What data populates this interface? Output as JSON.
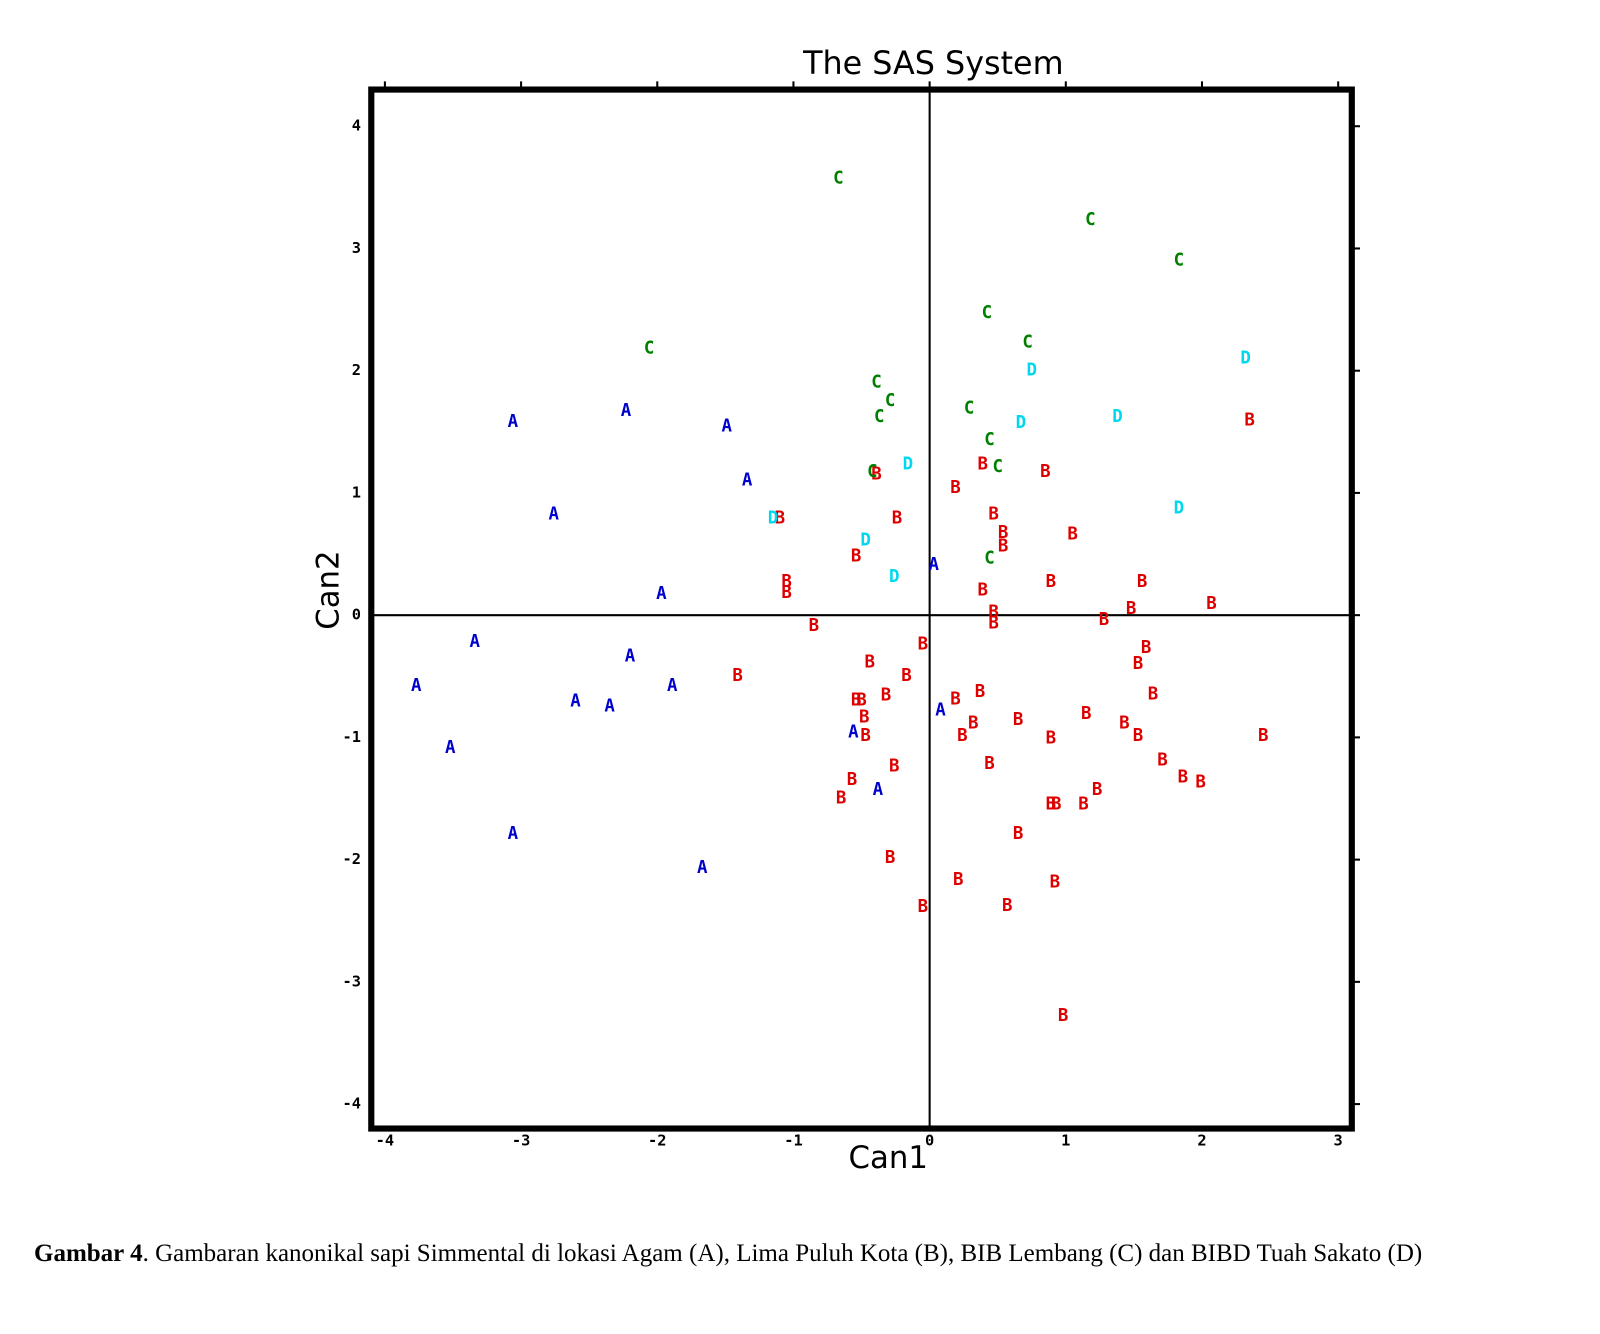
{
  "chart_data": {
    "type": "scatter",
    "title": "The SAS System",
    "x_label": "Can1",
    "y_label": "Can2",
    "xlim": [
      -4.1,
      3.1
    ],
    "ylim": [
      -4.2,
      4.3
    ],
    "xticks": [
      -4,
      -3,
      -2,
      -1,
      0,
      1,
      2,
      3
    ],
    "yticks": [
      -4,
      -3,
      -2,
      -1,
      0,
      1,
      2,
      3,
      4
    ],
    "reference_lines": true,
    "series": [
      {
        "name": "A",
        "color": "#0000cc",
        "x": [
          -3.06,
          -2.23,
          -1.49,
          -1.34,
          -2.76,
          -1.97,
          0.03,
          -3.34,
          -2.2,
          -3.77,
          -1.89,
          -2.6,
          -2.35,
          0.08,
          -0.56,
          -3.52,
          -0.38,
          -3.06,
          -1.67
        ],
        "values": [
          1.59,
          1.68,
          1.55,
          1.11,
          0.83,
          0.18,
          0.42,
          -0.21,
          -0.33,
          -0.57,
          -0.57,
          -0.7,
          -0.74,
          -0.77,
          -0.95,
          -1.08,
          -1.42,
          -1.78,
          -2.06
        ]
      },
      {
        "name": "B",
        "color": "#dd0000",
        "x": [
          2.35,
          0.39,
          0.85,
          -0.39,
          0.19,
          0.47,
          -1.1,
          -0.24,
          1.05,
          0.54,
          0.54,
          -0.54,
          -1.05,
          -1.05,
          0.39,
          0.89,
          1.56,
          2.07,
          0.47,
          1.48,
          1.28,
          0.47,
          -0.85,
          -0.05,
          1.59,
          1.53,
          -0.44,
          -0.17,
          -1.41,
          0.37,
          0.19,
          -0.32,
          1.64,
          -0.54,
          -0.5,
          -0.48,
          1.15,
          0.65,
          0.32,
          1.43,
          0.24,
          -0.47,
          0.89,
          1.53,
          2.45,
          0.44,
          1.71,
          -0.26,
          1.86,
          -0.57,
          1.99,
          1.23,
          -0.65,
          0.89,
          0.93,
          1.13,
          0.65,
          -0.29,
          0.21,
          0.92,
          -0.05,
          0.57,
          0.98
        ],
        "values": [
          1.6,
          1.24,
          1.18,
          1.16,
          1.05,
          0.83,
          0.8,
          0.8,
          0.67,
          0.68,
          0.57,
          0.49,
          0.28,
          0.19,
          0.21,
          0.28,
          0.28,
          0.1,
          0.03,
          0.06,
          -0.03,
          -0.06,
          -0.08,
          -0.23,
          -0.26,
          -0.39,
          -0.38,
          -0.49,
          -0.49,
          -0.62,
          -0.68,
          -0.65,
          -0.64,
          -0.69,
          -0.69,
          -0.83,
          -0.8,
          -0.85,
          -0.88,
          -0.88,
          -0.98,
          -0.98,
          -1.0,
          -0.98,
          -0.98,
          -1.21,
          -1.18,
          -1.23,
          -1.32,
          -1.34,
          -1.36,
          -1.42,
          -1.49,
          -1.54,
          -1.54,
          -1.54,
          -1.78,
          -1.98,
          -2.16,
          -2.18,
          -2.38,
          -2.37,
          -3.27
        ]
      },
      {
        "name": "C",
        "color": "#008000",
        "x": [
          -0.67,
          1.18,
          1.83,
          0.42,
          0.72,
          -2.06,
          -0.39,
          -0.29,
          -0.37,
          0.29,
          0.44,
          -0.42,
          0.5,
          0.44
        ],
        "values": [
          3.58,
          3.24,
          2.91,
          2.48,
          2.24,
          2.19,
          1.91,
          1.76,
          1.63,
          1.7,
          1.44,
          1.18,
          1.22,
          0.47
        ]
      },
      {
        "name": "D",
        "color": "#00d8f0",
        "x": [
          0.75,
          2.32,
          0.67,
          1.38,
          -0.16,
          1.83,
          -1.15,
          -0.47,
          -0.26
        ],
        "values": [
          2.01,
          2.11,
          1.58,
          1.63,
          1.24,
          0.88,
          0.8,
          0.62,
          0.32
        ]
      }
    ]
  },
  "caption": {
    "label": "Gambar 4",
    "text": ". Gambaran kanonikal sapi Simmental di lokasi Agam (A), Lima Puluh Kota (B), BIB Lembang (C) dan BIBD Tuah Sakato (D)"
  }
}
